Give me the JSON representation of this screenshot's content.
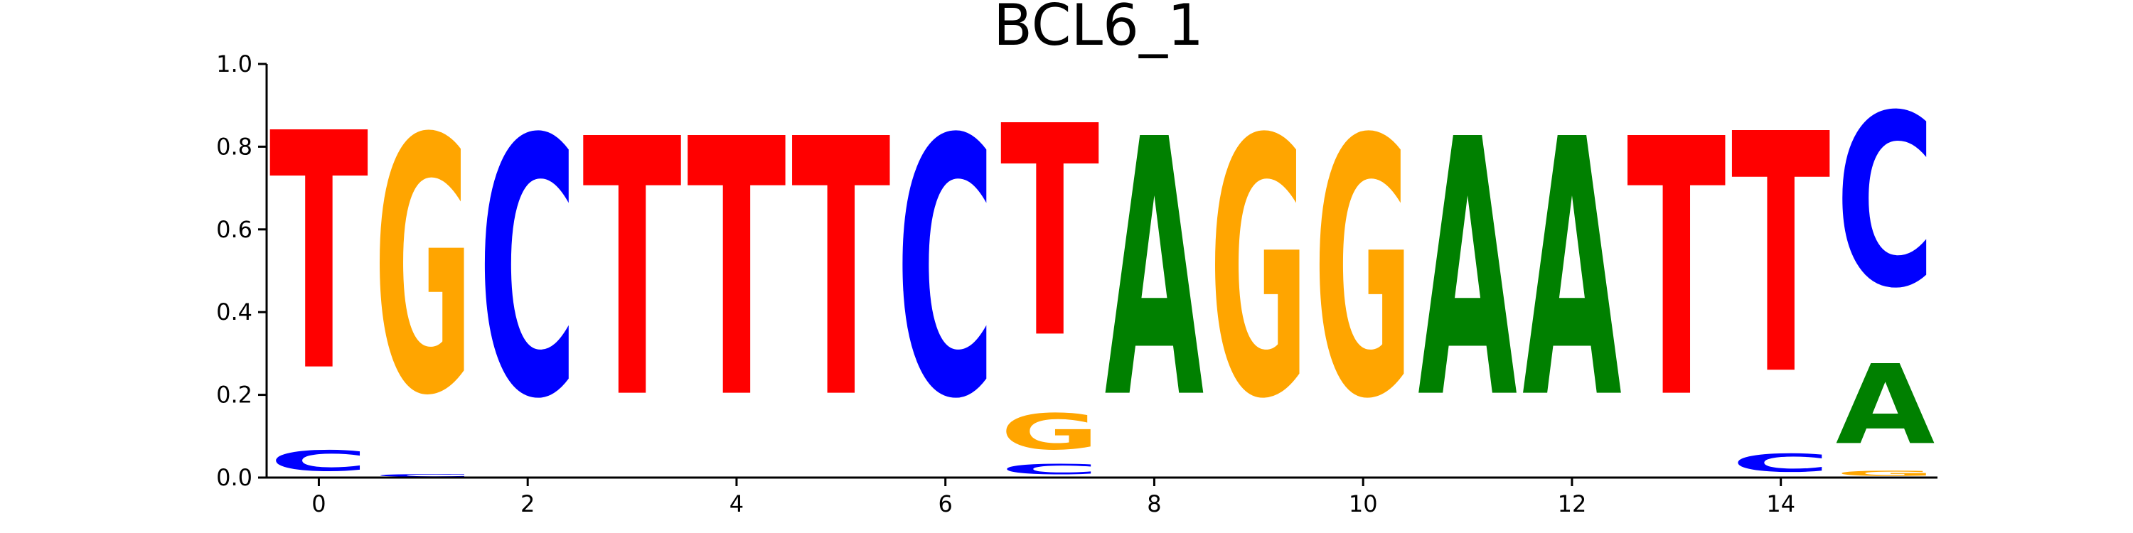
{
  "chart_data": {
    "type": "sequence-logo",
    "title": "BCL6_1",
    "xlabel": "",
    "ylabel": "",
    "ylim": [
      0,
      1.0
    ],
    "xlim": [
      -0.5,
      15.5
    ],
    "x_ticks": [
      0,
      2,
      4,
      6,
      8,
      10,
      12,
      14
    ],
    "y_ticks": [
      0.0,
      0.2,
      0.4,
      0.6,
      0.8,
      1.0
    ],
    "x_tick_labels": [
      "0",
      "2",
      "4",
      "6",
      "8",
      "10",
      "12",
      "14"
    ],
    "y_tick_labels": [
      "0.0",
      "0.2",
      "0.4",
      "0.6",
      "0.8",
      "1.0"
    ],
    "base_colors": {
      "A": "#008000",
      "C": "#0000ff",
      "G": "#ffa500",
      "T": "#ff0000"
    },
    "positions": [
      {
        "x": 0,
        "letters": [
          {
            "base": "C",
            "value": 0.08
          },
          {
            "base": "T",
            "value": 0.92
          }
        ]
      },
      {
        "x": 1,
        "letters": [
          {
            "base": "C",
            "value": 0.01
          },
          {
            "base": "G",
            "value": 0.99
          }
        ]
      },
      {
        "x": 2,
        "letters": [
          {
            "base": "C",
            "value": 1.0
          }
        ]
      },
      {
        "x": 3,
        "letters": [
          {
            "base": "T",
            "value": 1.0
          }
        ]
      },
      {
        "x": 4,
        "letters": [
          {
            "base": "T",
            "value": 1.0
          }
        ]
      },
      {
        "x": 5,
        "letters": [
          {
            "base": "T",
            "value": 1.0
          }
        ]
      },
      {
        "x": 6,
        "letters": [
          {
            "base": "C",
            "value": 1.0
          }
        ]
      },
      {
        "x": 7,
        "letters": [
          {
            "base": "C",
            "value": 0.04
          },
          {
            "base": "G",
            "value": 0.14
          },
          {
            "base": "T",
            "value": 0.82
          }
        ]
      },
      {
        "x": 8,
        "letters": [
          {
            "base": "A",
            "value": 1.0
          }
        ]
      },
      {
        "x": 9,
        "letters": [
          {
            "base": "G",
            "value": 1.0
          }
        ]
      },
      {
        "x": 10,
        "letters": [
          {
            "base": "G",
            "value": 1.0
          }
        ]
      },
      {
        "x": 11,
        "letters": [
          {
            "base": "A",
            "value": 1.0
          }
        ]
      },
      {
        "x": 12,
        "letters": [
          {
            "base": "A",
            "value": 1.0
          }
        ]
      },
      {
        "x": 13,
        "letters": [
          {
            "base": "T",
            "value": 1.0
          }
        ]
      },
      {
        "x": 14,
        "letters": [
          {
            "base": "C",
            "value": 0.07
          },
          {
            "base": "T",
            "value": 0.93
          }
        ]
      },
      {
        "x": 15,
        "letters": [
          {
            "base": "G",
            "value": 0.02
          },
          {
            "base": "A",
            "value": 0.31
          },
          {
            "base": "C",
            "value": 0.67
          }
        ]
      }
    ]
  }
}
